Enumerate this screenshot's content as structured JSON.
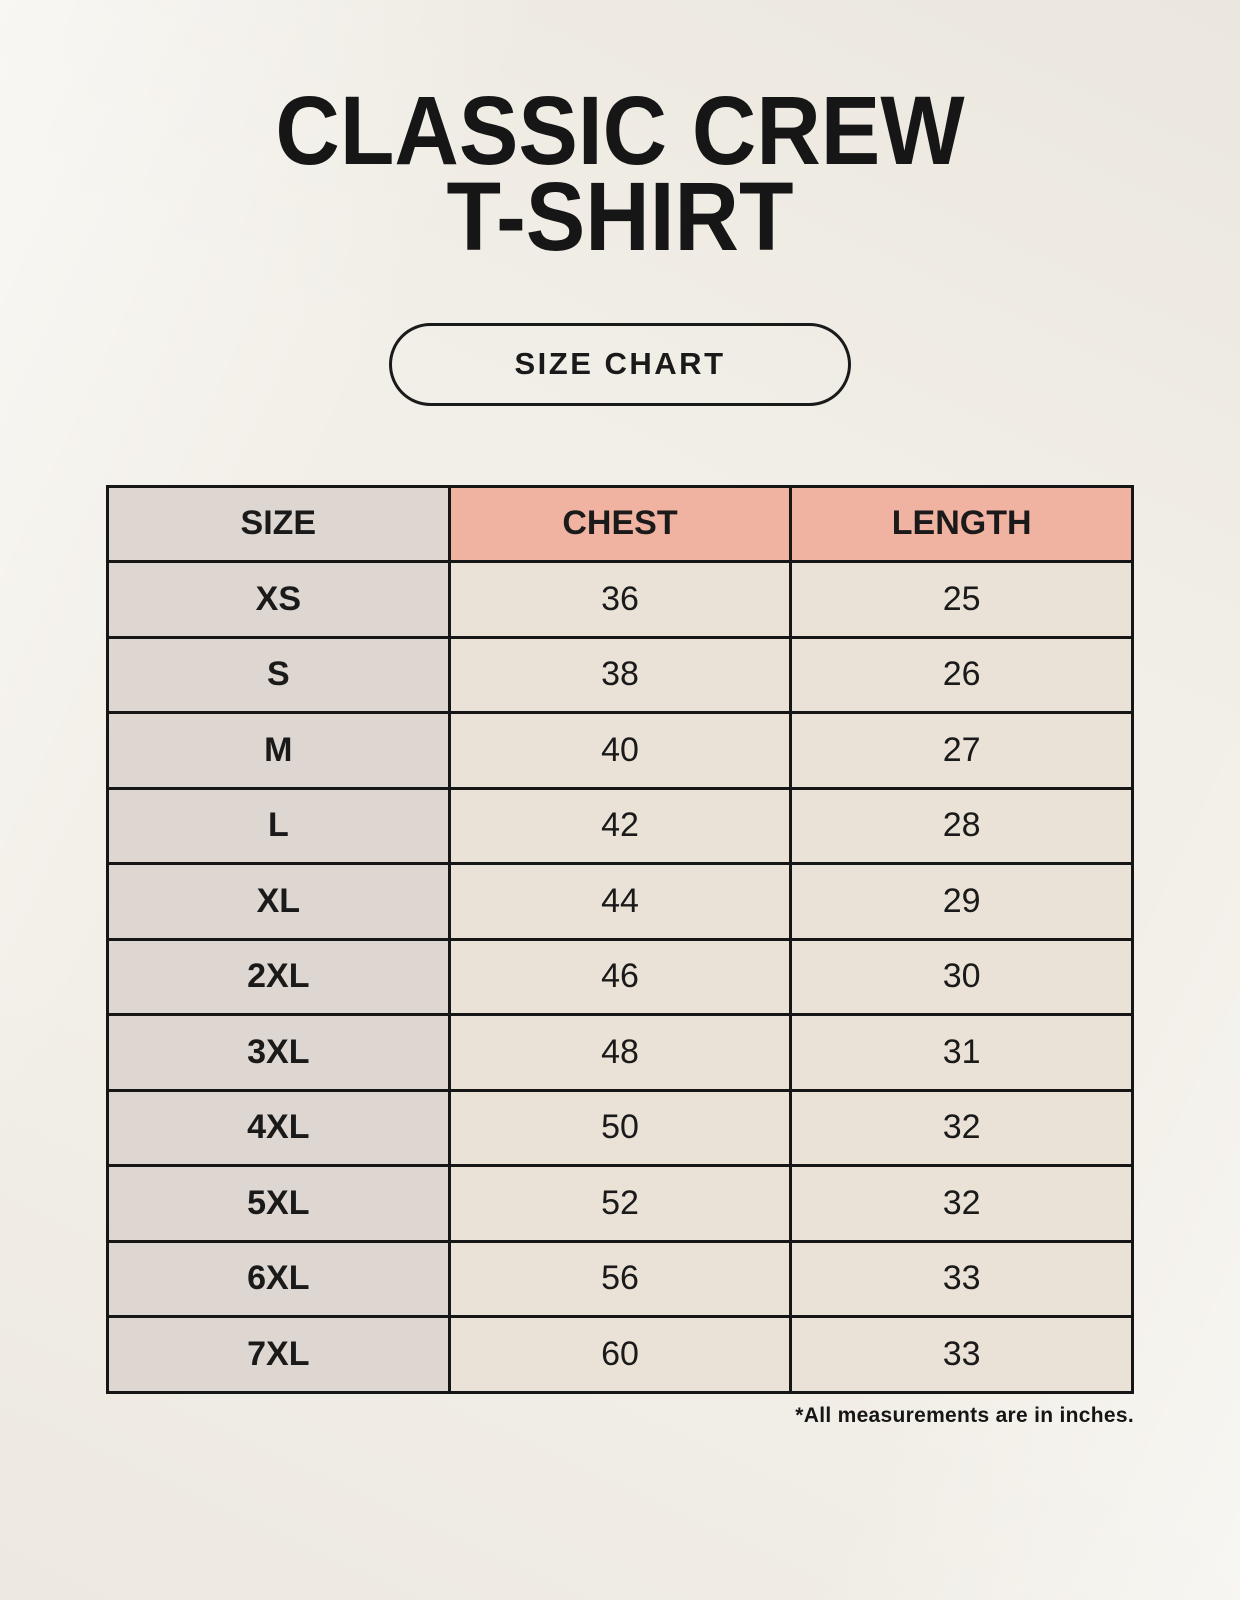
{
  "header": {
    "title_line1": "CLASSIC CREW",
    "title_line2": "T-SHIRT",
    "badge_label": "SIZE CHART"
  },
  "chart_data": {
    "type": "table",
    "title": "CLASSIC CREW T-SHIRT",
    "columns": [
      "SIZE",
      "CHEST",
      "LENGTH"
    ],
    "rows": [
      [
        "XS",
        "36",
        "25"
      ],
      [
        "S",
        "38",
        "26"
      ],
      [
        "M",
        "40",
        "27"
      ],
      [
        "L",
        "42",
        "28"
      ],
      [
        "XL",
        "44",
        "29"
      ],
      [
        "2XL",
        "46",
        "30"
      ],
      [
        "3XL",
        "48",
        "31"
      ],
      [
        "4XL",
        "50",
        "32"
      ],
      [
        "5XL",
        "52",
        "32"
      ],
      [
        "6XL",
        "56",
        "33"
      ],
      [
        "7XL",
        "60",
        "33"
      ]
    ],
    "footnote": "*All measurements are in inches."
  },
  "colors": {
    "background": "#f2efe8",
    "text": "#1a1a1a",
    "header_accent": "#f0b2a1",
    "size_column_bg": "#ddd6d1",
    "value_cell_bg": "#eae2d6",
    "table_border": "#161616"
  }
}
